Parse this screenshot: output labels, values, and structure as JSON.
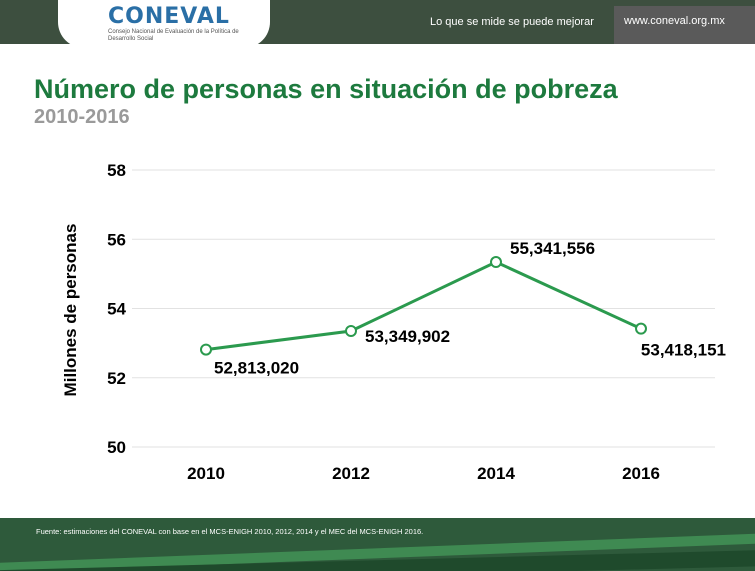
{
  "header": {
    "logo_text": "CONEVAL",
    "logo_subtitle": "Consejo Nacional de Evaluación de la Política de Desarrollo Social",
    "slogan": "Lo que se mide se puede mejorar",
    "url": "www.coneval.org.mx"
  },
  "title": "Número de personas en situación de pobreza",
  "subtitle": "2010-2016",
  "chart_data": {
    "type": "line",
    "categories": [
      "2010",
      "2012",
      "2014",
      "2016"
    ],
    "values": [
      52.81302,
      53.349902,
      55.341556,
      53.418151
    ],
    "data_labels": [
      "52,813,020",
      "53,349,902",
      "55,341,556",
      "53,418,151"
    ],
    "ylabel": "Millones de personas",
    "ylim": [
      50,
      58
    ],
    "yticks": [
      "50",
      "52",
      "54",
      "56",
      "58"
    ],
    "grid": true,
    "line_color": "#2b9a4e"
  },
  "footer": {
    "source": "Fuente: estimaciones del CONEVAL con base en el MCS-ENIGH 2010, 2012, 2014 y el MEC del MCS-ENIGH 2016."
  }
}
